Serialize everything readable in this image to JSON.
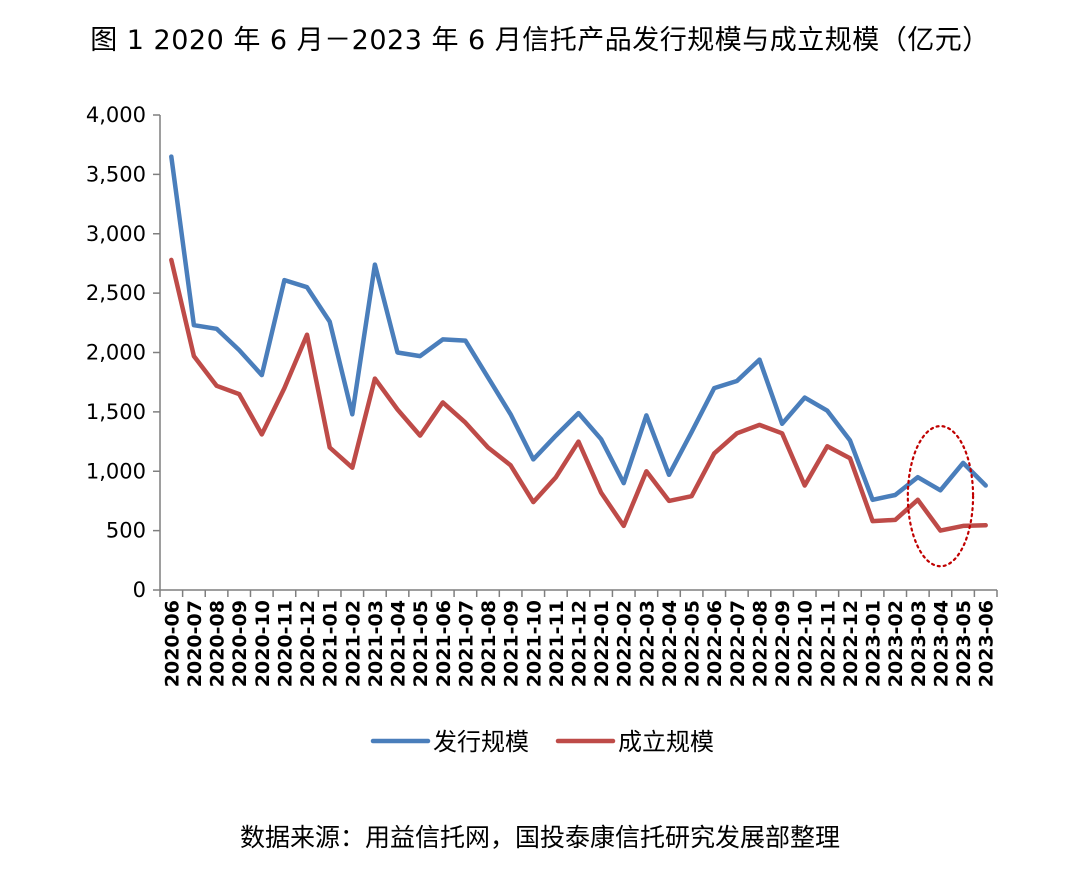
{
  "chart_data": {
    "type": "line",
    "title": "图 1 2020 年 6 月－2023 年 6 月信托产品发行规模与成立规模（亿元）",
    "source": "数据来源：用益信托网，国投泰康信托研究发展部整理",
    "xlabel": "",
    "ylabel": "",
    "ylim": [
      0,
      4000
    ],
    "yticks": [
      0,
      500,
      1000,
      1500,
      2000,
      2500,
      3000,
      3500,
      4000
    ],
    "ytick_labels": [
      "0",
      "500",
      "1,000",
      "1,500",
      "2,000",
      "2,500",
      "3,000",
      "3,500",
      "4,000"
    ],
    "grid": false,
    "legend_position": "bottom",
    "categories": [
      "2020-06",
      "2020-07",
      "2020-08",
      "2020-09",
      "2020-10",
      "2020-11",
      "2020-12",
      "2021-01",
      "2021-02",
      "2021-03",
      "2021-04",
      "2021-05",
      "2021-06",
      "2021-07",
      "2021-08",
      "2021-09",
      "2021-10",
      "2021-11",
      "2021-12",
      "2022-01",
      "2022-02",
      "2022-03",
      "2022-04",
      "2022-05",
      "2022-06",
      "2022-07",
      "2022-08",
      "2022-09",
      "2022-10",
      "2022-11",
      "2022-12",
      "2023-01",
      "2023-02",
      "2023-03",
      "2023-04",
      "2023-05",
      "2023-06"
    ],
    "series": [
      {
        "name": "发行规模",
        "color": "#4a7ebb",
        "values": [
          3650,
          2230,
          2200,
          2020,
          1810,
          2610,
          2550,
          2260,
          1480,
          2740,
          2000,
          1970,
          2110,
          2100,
          1790,
          1480,
          1100,
          1300,
          1490,
          1270,
          900,
          1470,
          970,
          1330,
          1700,
          1760,
          1940,
          1400,
          1620,
          1510,
          1260,
          760,
          800,
          950,
          840,
          1070,
          880
        ]
      },
      {
        "name": "成立规模",
        "color": "#be4b48",
        "values": [
          2780,
          1970,
          1720,
          1650,
          1310,
          1700,
          2150,
          1200,
          1030,
          1780,
          1520,
          1300,
          1580,
          1410,
          1200,
          1050,
          740,
          950,
          1250,
          820,
          540,
          1000,
          750,
          790,
          1150,
          1320,
          1390,
          1320,
          880,
          1210,
          1110,
          580,
          590,
          760,
          500,
          540,
          545
        ]
      }
    ],
    "annotation": {
      "shape": "dotted-ellipse",
      "color": "#c00000",
      "x_from": "2023-03",
      "x_to": "2023-05",
      "y_range": [
        200,
        1380
      ]
    }
  }
}
